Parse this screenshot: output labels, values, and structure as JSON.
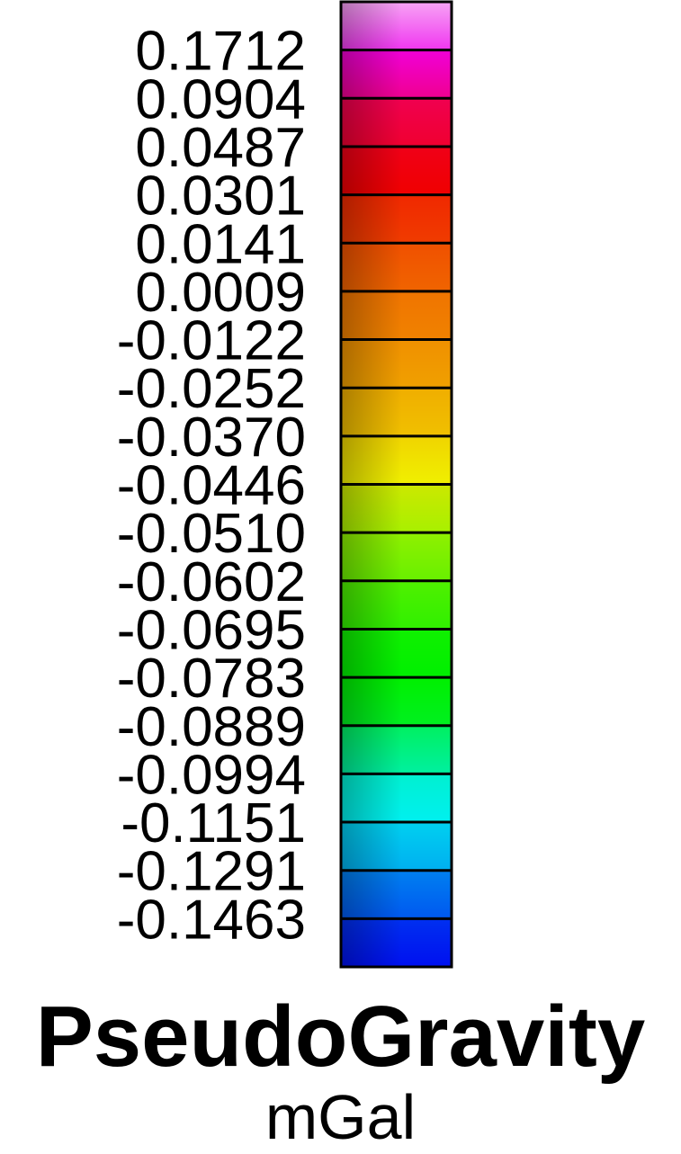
{
  "chart_data": {
    "type": "heatmap",
    "title": "PseudoGravity",
    "unit": "mGal",
    "tick_labels": [
      "0.1712",
      "0.0904",
      "0.0487",
      "0.0301",
      "0.0141",
      "0.0009",
      "-0.0122",
      "-0.0252",
      "-0.0370",
      "-0.0446",
      "-0.0510",
      "-0.0602",
      "-0.0695",
      "-0.0783",
      "-0.0889",
      "-0.0994",
      "-0.1151",
      "-0.1291",
      "-0.1463"
    ],
    "values": [
      0.1712,
      0.0904,
      0.0487,
      0.0301,
      0.0141,
      0.0009,
      -0.0122,
      -0.0252,
      -0.037,
      -0.0446,
      -0.051,
      -0.0602,
      -0.0695,
      -0.0783,
      -0.0889,
      -0.0994,
      -0.1151,
      -0.1291,
      -0.1463
    ],
    "bands": [
      {
        "top": "#f7a4f5",
        "bottom": "#f036f0"
      },
      {
        "top": "#f000d8",
        "bottom": "#f00090"
      },
      {
        "top": "#f00050",
        "bottom": "#f00030"
      },
      {
        "top": "#f00018",
        "bottom": "#f00000"
      },
      {
        "top": "#f02800",
        "bottom": "#f03c00"
      },
      {
        "top": "#f05000",
        "bottom": "#f06400"
      },
      {
        "top": "#f07400",
        "bottom": "#f08200"
      },
      {
        "top": "#f09000",
        "bottom": "#f0a000"
      },
      {
        "top": "#f0ae00",
        "bottom": "#f0c000"
      },
      {
        "top": "#f0d400",
        "bottom": "#f0f000"
      },
      {
        "top": "#cce800",
        "bottom": "#a8f000"
      },
      {
        "top": "#90f000",
        "bottom": "#68f000"
      },
      {
        "top": "#50f000",
        "bottom": "#30f000"
      },
      {
        "top": "#10f000",
        "bottom": "#00f000"
      },
      {
        "top": "#00f000",
        "bottom": "#00f020"
      },
      {
        "top": "#00f060",
        "bottom": "#00f0a0"
      },
      {
        "top": "#00f0d0",
        "bottom": "#00f0f0"
      },
      {
        "top": "#00d0f0",
        "bottom": "#00b0f0"
      },
      {
        "top": "#0080f0",
        "bottom": "#0058f0"
      },
      {
        "top": "#0030f0",
        "bottom": "#0010f0"
      }
    ],
    "colorbar_edge_color": "#000000",
    "orientation": "vertical"
  }
}
